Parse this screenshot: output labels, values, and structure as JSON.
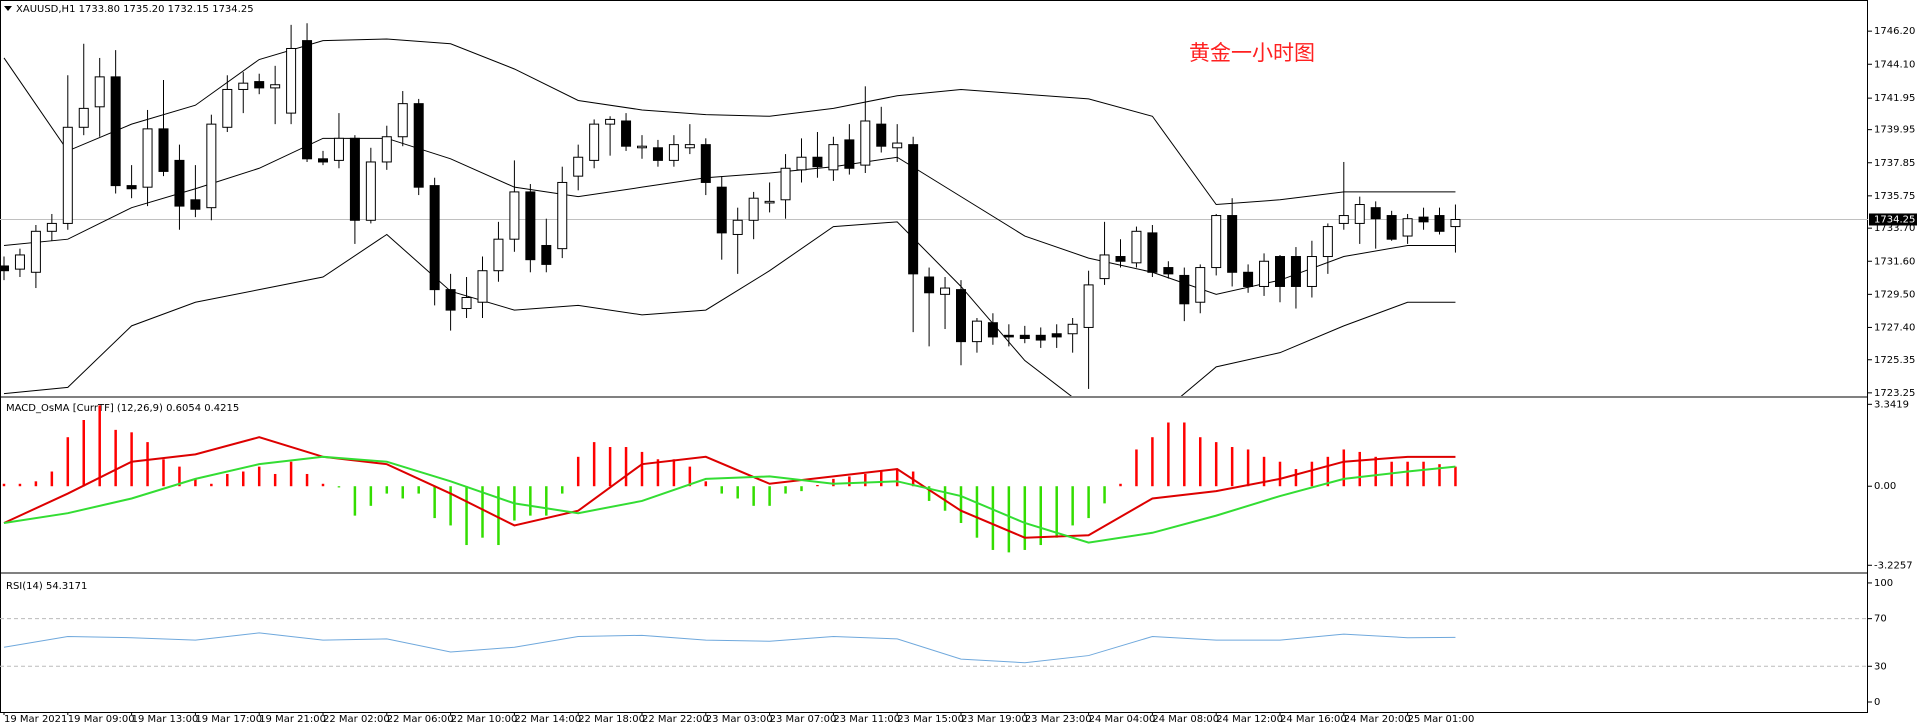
{
  "chart_data": [
    {
      "type": "candlestick",
      "title": "XAUUSD,H1  1733.80 1735.20 1732.15 1734.25",
      "annotation": "黄金一小时图",
      "categories": [
        "19 Mar 2021",
        null,
        null,
        null,
        "19 Mar 09:00",
        null,
        null,
        null,
        "19 Mar 13:00",
        null,
        null,
        null,
        "19 Mar 17:00",
        null,
        null,
        null,
        "19 Mar 21:00",
        null,
        null,
        null,
        "22 Mar 02:00",
        null,
        null,
        null,
        "22 Mar 06:00",
        null,
        null,
        null,
        "22 Mar 10:00",
        null,
        null,
        null,
        "22 Mar 14:00",
        null,
        null,
        null,
        "22 Mar 18:00",
        null,
        null,
        null,
        "22 Mar 22:00",
        null,
        null,
        null,
        "23 Mar 03:00",
        null,
        null,
        null,
        "23 Mar 07:00",
        null,
        null,
        null,
        "23 Mar 11:00",
        null,
        null,
        null,
        "23 Mar 15:00",
        null,
        null,
        null,
        "23 Mar 19:00",
        null,
        null,
        null,
        "23 Mar 23:00",
        null,
        null,
        null,
        "24 Mar 04:00",
        null,
        null,
        null,
        "24 Mar 08:00",
        null,
        null,
        null,
        "24 Mar 12:00",
        null,
        null,
        null,
        "24 Mar 16:00",
        null,
        null,
        null,
        "24 Mar 20:00",
        null,
        null,
        null,
        "25 Mar 01:00",
        null,
        null,
        null
      ],
      "ohlc": [
        [
          1731.3,
          1731.9,
          1730.4,
          1731.0
        ],
        [
          1731.1,
          1732.4,
          1730.6,
          1732.0
        ],
        [
          1730.9,
          1733.9,
          1729.9,
          1733.5
        ],
        [
          1733.5,
          1734.6,
          1732.9,
          1734.0
        ],
        [
          1734.0,
          1743.4,
          1733.6,
          1740.1
        ],
        [
          1740.1,
          1745.4,
          1739.6,
          1741.3
        ],
        [
          1741.4,
          1744.5,
          1739.5,
          1743.3
        ],
        [
          1743.3,
          1745.0,
          1735.9,
          1736.4
        ],
        [
          1736.4,
          1737.7,
          1735.6,
          1736.2
        ],
        [
          1736.3,
          1741.2,
          1735.1,
          1740.0
        ],
        [
          1740.0,
          1743.1,
          1737.0,
          1737.3
        ],
        [
          1738.0,
          1739.0,
          1733.6,
          1735.1
        ],
        [
          1735.5,
          1737.7,
          1734.4,
          1734.9
        ],
        [
          1735.0,
          1740.9,
          1734.2,
          1740.3
        ],
        [
          1740.1,
          1743.4,
          1739.8,
          1742.5
        ],
        [
          1742.5,
          1743.6,
          1741.0,
          1742.9
        ],
        [
          1743.0,
          1743.5,
          1742.2,
          1742.6
        ],
        [
          1742.6,
          1744.0,
          1740.3,
          1742.8
        ],
        [
          1741.0,
          1746.6,
          1740.3,
          1745.1
        ],
        [
          1745.6,
          1746.7,
          1737.9,
          1738.1
        ],
        [
          1738.1,
          1738.6,
          1737.7,
          1737.9
        ],
        [
          1738.0,
          1741.0,
          1737.5,
          1739.4
        ],
        [
          1739.4,
          1739.6,
          1732.7,
          1734.2
        ],
        [
          1734.2,
          1738.8,
          1734.0,
          1737.9
        ],
        [
          1737.9,
          1740.2,
          1737.4,
          1739.5
        ],
        [
          1739.5,
          1742.4,
          1738.9,
          1741.6
        ],
        [
          1741.6,
          1741.9,
          1735.8,
          1736.3
        ],
        [
          1736.4,
          1736.9,
          1728.8,
          1729.8
        ],
        [
          1729.8,
          1730.8,
          1727.2,
          1728.5
        ],
        [
          1728.6,
          1730.6,
          1728.0,
          1729.3
        ],
        [
          1729.0,
          1731.9,
          1728.0,
          1731.0
        ],
        [
          1731.0,
          1734.1,
          1730.3,
          1733.0
        ],
        [
          1733.0,
          1738.0,
          1732.2,
          1736.0
        ],
        [
          1736.0,
          1736.5,
          1730.9,
          1731.7
        ],
        [
          1732.6,
          1734.3,
          1730.9,
          1731.4
        ],
        [
          1732.4,
          1737.6,
          1731.8,
          1736.6
        ],
        [
          1737.0,
          1739.0,
          1736.1,
          1738.2
        ],
        [
          1738.0,
          1740.6,
          1737.5,
          1740.3
        ],
        [
          1740.3,
          1740.8,
          1738.3,
          1740.6
        ],
        [
          1740.5,
          1741.0,
          1738.6,
          1738.9
        ],
        [
          1738.8,
          1739.6,
          1738.1,
          1738.9
        ],
        [
          1738.8,
          1739.3,
          1737.6,
          1738.0
        ],
        [
          1738.0,
          1739.6,
          1737.6,
          1739.0
        ],
        [
          1738.8,
          1740.3,
          1738.4,
          1739.0
        ],
        [
          1739.0,
          1739.4,
          1735.8,
          1736.6
        ],
        [
          1736.3,
          1737.0,
          1731.7,
          1733.4
        ],
        [
          1733.3,
          1735.0,
          1730.8,
          1734.2
        ],
        [
          1734.2,
          1736.0,
          1733.0,
          1735.6
        ],
        [
          1735.3,
          1736.6,
          1734.7,
          1735.4
        ],
        [
          1735.5,
          1738.4,
          1734.3,
          1737.5
        ],
        [
          1737.4,
          1739.4,
          1736.6,
          1738.2
        ],
        [
          1738.2,
          1739.8,
          1736.9,
          1737.6
        ],
        [
          1737.4,
          1739.5,
          1736.7,
          1739.0
        ],
        [
          1739.3,
          1740.3,
          1737.1,
          1737.5
        ],
        [
          1737.7,
          1742.7,
          1737.2,
          1740.5
        ],
        [
          1740.3,
          1741.4,
          1738.5,
          1738.9
        ],
        [
          1738.8,
          1740.3,
          1737.9,
          1739.1
        ],
        [
          1739.0,
          1739.5,
          1727.1,
          1730.8
        ],
        [
          1730.6,
          1731.2,
          1726.2,
          1729.6
        ],
        [
          1729.5,
          1730.6,
          1727.3,
          1729.9
        ],
        [
          1729.8,
          1730.4,
          1725.0,
          1726.5
        ],
        [
          1726.5,
          1728.0,
          1725.8,
          1727.8
        ],
        [
          1727.7,
          1728.3,
          1726.3,
          1726.8
        ],
        [
          1726.9,
          1727.6,
          1726.2,
          1726.8
        ],
        [
          1726.9,
          1727.5,
          1726.4,
          1726.7
        ],
        [
          1726.9,
          1727.4,
          1726.1,
          1726.6
        ],
        [
          1727.0,
          1727.6,
          1726.1,
          1726.8
        ],
        [
          1727.0,
          1728.0,
          1725.8,
          1727.6
        ],
        [
          1727.4,
          1731.0,
          1723.5,
          1730.1
        ],
        [
          1730.5,
          1734.1,
          1730.1,
          1732.0
        ],
        [
          1731.9,
          1733.0,
          1731.2,
          1731.6
        ],
        [
          1731.5,
          1733.8,
          1731.2,
          1733.5
        ],
        [
          1733.4,
          1733.9,
          1730.6,
          1730.9
        ],
        [
          1731.2,
          1731.6,
          1730.5,
          1730.8
        ],
        [
          1730.7,
          1731.2,
          1727.8,
          1728.9
        ],
        [
          1729.0,
          1731.4,
          1728.3,
          1731.2
        ],
        [
          1731.2,
          1734.6,
          1730.7,
          1734.5
        ],
        [
          1734.5,
          1735.6,
          1730.0,
          1730.9
        ],
        [
          1730.9,
          1731.4,
          1729.6,
          1730.0
        ],
        [
          1730.0,
          1732.1,
          1729.4,
          1731.6
        ],
        [
          1731.9,
          1732.0,
          1729.0,
          1730.0
        ],
        [
          1731.9,
          1732.5,
          1728.6,
          1730.0
        ],
        [
          1730.0,
          1732.9,
          1729.3,
          1731.9
        ],
        [
          1731.9,
          1734.0,
          1730.8,
          1733.8
        ],
        [
          1734.0,
          1737.9,
          1733.6,
          1734.5
        ],
        [
          1734.0,
          1735.7,
          1732.7,
          1735.2
        ],
        [
          1735.0,
          1735.4,
          1732.4,
          1734.3
        ],
        [
          1734.5,
          1734.8,
          1732.9,
          1733.0
        ],
        [
          1733.2,
          1734.6,
          1732.7,
          1734.3
        ],
        [
          1734.4,
          1735.0,
          1733.6,
          1734.1
        ],
        [
          1734.5,
          1735.0,
          1733.3,
          1733.5
        ],
        [
          1733.8,
          1735.2,
          1732.15,
          1734.25
        ]
      ],
      "up_color": "#ffffff",
      "down_color": "#000000",
      "overlay_x": [
        0,
        4,
        8,
        12,
        16,
        20,
        24,
        28,
        32,
        36,
        40,
        44,
        48,
        52,
        56,
        60,
        64,
        68,
        72,
        76,
        80,
        84,
        88,
        91
      ],
      "overlays": [
        {
          "color": "#000000",
          "values": [
            1744.5,
            1738.6,
            1740.3,
            1741.5,
            1744.4,
            1745.6,
            1745.7,
            1745.4,
            1743.8,
            1741.8,
            1741.2,
            1740.9,
            1740.8,
            1741.3,
            1742.1,
            1742.5,
            1742.2,
            1741.9,
            1740.8,
            1735.2,
            1735.5,
            1736.0,
            1736.0,
            1736.0
          ]
        },
        {
          "color": "#000000",
          "values": [
            1732.6,
            1733.0,
            1735.0,
            1736.2,
            1737.5,
            1739.4,
            1739.4,
            1738.1,
            1736.3,
            1735.7,
            1736.3,
            1736.9,
            1737.2,
            1737.6,
            1738.2,
            1735.7,
            1733.2,
            1731.8,
            1730.9,
            1729.5,
            1730.4,
            1731.9,
            1732.6,
            1732.6
          ]
        },
        {
          "color": "#000000",
          "values": [
            1723.2,
            1723.6,
            1727.5,
            1729.0,
            1729.8,
            1730.6,
            1733.3,
            1729.7,
            1728.5,
            1728.8,
            1728.2,
            1728.5,
            1731.0,
            1733.8,
            1734.1,
            1730.0,
            1725.3,
            1722.2,
            1721.5,
            1724.9,
            1725.8,
            1727.5,
            1729.0,
            1729.0
          ]
        }
      ],
      "price_line": 1734.25,
      "ylim": [
        1723.05,
        1748.05
      ],
      "yticks": [
        {
          "value": 1746.2,
          "label": "1746.20"
        },
        {
          "value": 1744.1,
          "label": "1744.10"
        },
        1741.95,
        1739.95,
        1737.85,
        1735.75,
        {
          "value": 1733.7,
          "label": "1733.70"
        },
        {
          "value": 1731.6,
          "label": "1731.60"
        },
        {
          "value": 1729.5,
          "label": "1729.50"
        },
        {
          "value": 1727.4,
          "label": "1727.40"
        },
        1725.35,
        1723.25
      ]
    },
    {
      "type": "macd",
      "title": "MACD_OsMA [CurrTF] (12,26,9) 0.6054 0.4215",
      "values": [
        0.1,
        0.1,
        0.2,
        0.6,
        2.0,
        2.7,
        3.3,
        2.3,
        2.2,
        1.8,
        1.1,
        0.8,
        0.3,
        0.1,
        0.5,
        0.6,
        0.8,
        0.5,
        1.0,
        0.5,
        0.1,
        -0.05,
        -1.2,
        -0.8,
        -0.3,
        -0.5,
        -0.3,
        -1.3,
        -1.6,
        -2.4,
        -2.1,
        -2.4,
        -1.4,
        -1.2,
        -1.2,
        -0.3,
        1.2,
        1.8,
        1.6,
        1.6,
        1.4,
        1.1,
        1.1,
        0.8,
        0.2,
        -0.3,
        -0.5,
        -0.8,
        -0.8,
        -0.3,
        -0.2,
        0.05,
        0.3,
        0.4,
        0.5,
        0.6,
        0.7,
        0.6,
        -0.6,
        -1.0,
        -1.5,
        -2.1,
        -2.6,
        -2.7,
        -2.6,
        -2.4,
        -2.1,
        -1.6,
        -1.3,
        -0.7,
        0.1,
        1.5,
        2.0,
        2.6,
        2.6,
        2.0,
        1.8,
        1.6,
        1.5,
        1.2,
        1.0,
        0.7,
        1.0,
        1.2,
        1.5,
        1.4,
        1.2,
        1.0,
        1.0,
        1.0,
        0.9,
        0.8
      ],
      "pos_color": "#ff0000",
      "neg_color": "#33dd00",
      "lines_x": [
        0,
        4,
        8,
        12,
        16,
        20,
        24,
        28,
        32,
        36,
        40,
        44,
        48,
        52,
        56,
        60,
        64,
        68,
        72,
        76,
        80,
        84,
        88,
        91
      ],
      "lines": [
        {
          "color": "#dd0000",
          "values": [
            -1.5,
            -0.3,
            1.0,
            1.3,
            2.0,
            1.2,
            0.9,
            -0.3,
            -1.6,
            -1.0,
            0.9,
            1.2,
            0.1,
            0.4,
            0.7,
            -1.0,
            -2.1,
            -2.0,
            -0.5,
            -0.2,
            0.3,
            1.0,
            1.2,
            1.2
          ]
        },
        {
          "color": "#33dd33",
          "values": [
            -1.5,
            -1.1,
            -0.5,
            0.3,
            0.9,
            1.2,
            1.0,
            0.2,
            -0.7,
            -1.1,
            -0.6,
            0.3,
            0.4,
            0.1,
            0.2,
            -0.4,
            -1.5,
            -2.3,
            -1.9,
            -1.2,
            -0.4,
            0.3,
            0.6,
            0.8
          ]
        }
      ],
      "ylim": [
        -3.5,
        3.6
      ],
      "yticks": [
        3.3419,
        {
          "value": 0,
          "label": "0.00"
        },
        -3.2257
      ]
    },
    {
      "type": "line",
      "title": "RSI(14) 54.3171",
      "x": [
        0,
        4,
        8,
        12,
        16,
        20,
        24,
        28,
        32,
        36,
        40,
        44,
        48,
        52,
        56,
        60,
        64,
        68,
        72,
        76,
        80,
        84,
        88,
        91
      ],
      "values": [
        46,
        55,
        54,
        52,
        58,
        52,
        53,
        42,
        46,
        55,
        56,
        52,
        51,
        55,
        53,
        36,
        33,
        39,
        55,
        52,
        52,
        57,
        54,
        54.3171
      ],
      "color": "#6fa8dc",
      "levels": [
        70,
        30
      ],
      "ylim": [
        -8.4,
        107.5
      ],
      "yticks": [
        100,
        70,
        30,
        0
      ]
    }
  ]
}
